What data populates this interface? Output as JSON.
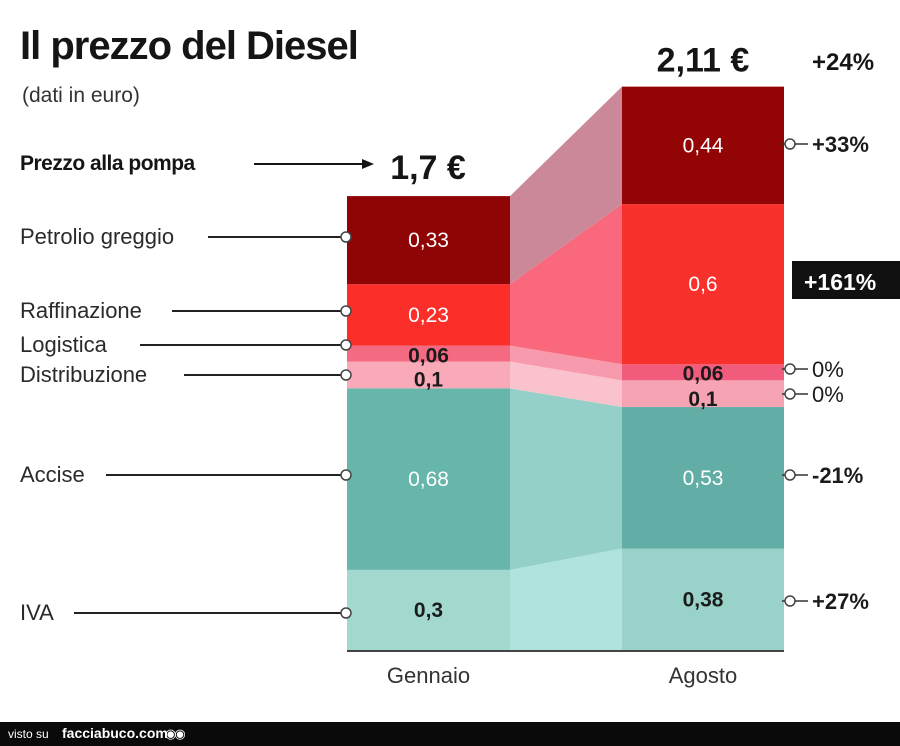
{
  "title": "Il prezzo del Diesel",
  "subtitle": "(dati in euro)",
  "footer": {
    "visto_su": "visto su",
    "site": "facciabuco.com",
    "icon": "eyes-logo-icon"
  },
  "chart_data": {
    "type": "bar",
    "stacked": true,
    "categories": [
      "Gennaio",
      "Agosto"
    ],
    "totals": [
      "1,7 €",
      "2,11 €"
    ],
    "total_change": "+24%",
    "pump_price_label": "Prezzo alla pompa",
    "series": [
      {
        "name": "IVA",
        "values": [
          0.3,
          0.38
        ],
        "labels": [
          "0,3",
          "0,38"
        ],
        "change": "+27%",
        "color_jan": "#a3d8cf",
        "color_aug": "#99d2c8",
        "color_band": "#b0e3db"
      },
      {
        "name": "Accise",
        "values": [
          0.68,
          0.53
        ],
        "labels": [
          "0,68",
          "0,53"
        ],
        "change": "-21%",
        "color_jan": "#66b6ac",
        "color_aug": "#62aea6",
        "color_band": "#94d0c7"
      },
      {
        "name": "Distribuzione",
        "values": [
          0.1,
          0.1
        ],
        "labels": [
          "0,1",
          "0,1"
        ],
        "change": "0%",
        "color_jan": "#f8aab8",
        "color_aug": "#f6a4b4",
        "color_band": "#f9c2cd"
      },
      {
        "name": "Logistica",
        "values": [
          0.06,
          0.06
        ],
        "labels": [
          "0,06",
          "0,06"
        ],
        "change": "0%",
        "color_jan": "#f46a83",
        "color_aug": "#f25c7c",
        "color_band": "#f79aae"
      },
      {
        "name": "Raffinazione",
        "values": [
          0.23,
          0.6
        ],
        "labels": [
          "0,23",
          "0,6"
        ],
        "change": "+161%",
        "change_highlight": true,
        "color_jan": "#fb2e2a",
        "color_aug": "#f9312c",
        "color_band": "#f9687c"
      },
      {
        "name": "Petrolio greggio",
        "values": [
          0.33,
          0.44
        ],
        "labels": [
          "0,33",
          "0,44"
        ],
        "change": "+33%",
        "color_jan": "#8f0505",
        "color_aug": "#930404",
        "color_band": "#cb8899"
      }
    ]
  }
}
